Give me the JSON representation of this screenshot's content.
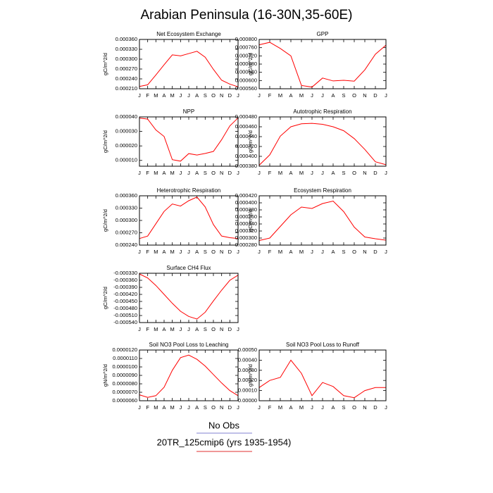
{
  "page": {
    "title": "Arabian Peninsula (16-30N,35-60E)",
    "legend": [
      {
        "name": "No Obs",
        "color": "#8080d0"
      },
      {
        "name": "20TR_125cmip6 (yrs 1935-1954)",
        "color": "#e03030"
      }
    ]
  },
  "chart_data": [
    {
      "type": "line",
      "title": "Net Ecosystem Exchange",
      "ylabel": "gC/m^2/d",
      "color": "#ff0000",
      "categories": [
        "J",
        "F",
        "M",
        "A",
        "M",
        "J",
        "J",
        "A",
        "S",
        "O",
        "N",
        "D",
        "J"
      ],
      "values": [
        0.000217,
        0.000222,
        0.000252,
        0.000283,
        0.000313,
        0.00031,
        0.000317,
        0.000324,
        0.000306,
        0.000269,
        0.000236,
        0.000224,
        0.000216
      ],
      "ylim": [
        0.00021,
        0.00036
      ],
      "yticks": [
        {
          "value": 0.00021,
          "label": "0.000210"
        },
        {
          "value": 0.00024,
          "label": "0.000240"
        },
        {
          "value": 0.00027,
          "label": "0.000270"
        },
        {
          "value": 0.0003,
          "label": "0.000300"
        },
        {
          "value": 0.00033,
          "label": "0.000330"
        },
        {
          "value": 0.00036,
          "label": "0.000360"
        }
      ]
    },
    {
      "type": "line",
      "title": "GPP",
      "ylabel": "gC/m^2/d",
      "color": "#ff0000",
      "categories": [
        "J",
        "F",
        "M",
        "A",
        "M",
        "J",
        "J",
        "A",
        "S",
        "O",
        "N",
        "D",
        "J"
      ],
      "values": [
        0.000774,
        0.000786,
        0.000756,
        0.00072,
        0.000576,
        0.000568,
        0.000612,
        0.000598,
        0.000601,
        0.000597,
        0.000652,
        0.000728,
        0.000772
      ],
      "ylim": [
        0.00056,
        0.0008
      ],
      "yticks": [
        {
          "value": 0.00056,
          "label": "0.000560"
        },
        {
          "value": 0.0006,
          "label": "0.000600"
        },
        {
          "value": 0.00064,
          "label": "0.000640"
        },
        {
          "value": 0.00068,
          "label": "0.000680"
        },
        {
          "value": 0.00072,
          "label": "0.000720"
        },
        {
          "value": 0.00076,
          "label": "0.000760"
        },
        {
          "value": 0.0008,
          "label": "0.000800"
        }
      ]
    },
    {
      "type": "line",
      "title": "NPP",
      "ylabel": "gC/m^2/d",
      "color": "#ff0000",
      "categories": [
        "J",
        "F",
        "M",
        "A",
        "M",
        "J",
        "J",
        "A",
        "S",
        "O",
        "N",
        "D",
        "J"
      ],
      "values": [
        3.92e-05,
        3.85e-05,
        3.1e-05,
        2.65e-05,
        1.05e-05,
        9.5e-06,
        1.47e-05,
        1.37e-05,
        1.48e-05,
        1.62e-05,
        2.43e-05,
        3.38e-05,
        3.93e-05
      ],
      "ylim": [
        6e-06,
        4e-05
      ],
      "yticks": [
        {
          "value": 1e-05,
          "label": "0.000010"
        },
        {
          "value": 2e-05,
          "label": "0.000020"
        },
        {
          "value": 3e-05,
          "label": "0.000030"
        },
        {
          "value": 4e-05,
          "label": "0.000040"
        }
      ]
    },
    {
      "type": "line",
      "title": "Autotrophic Respiration",
      "ylabel": "gC/m^2/d",
      "color": "#ff0000",
      "categories": [
        "J",
        "F",
        "M",
        "A",
        "M",
        "J",
        "J",
        "A",
        "S",
        "O",
        "N",
        "D",
        "J"
      ],
      "values": [
        0.000382,
        0.000403,
        0.000441,
        0.00046,
        0.000466,
        0.000467,
        0.000465,
        0.00046,
        0.000452,
        0.000436,
        0.000414,
        0.000389,
        0.000383
      ],
      "ylim": [
        0.00038,
        0.00048
      ],
      "yticks": [
        {
          "value": 0.00038,
          "label": "0.000380"
        },
        {
          "value": 0.0004,
          "label": "0.000400"
        },
        {
          "value": 0.00042,
          "label": "0.000420"
        },
        {
          "value": 0.00044,
          "label": "0.000440"
        },
        {
          "value": 0.00046,
          "label": "0.000460"
        },
        {
          "value": 0.00048,
          "label": "0.000480"
        }
      ]
    },
    {
      "type": "line",
      "title": "Heterotrophic Respiration",
      "ylabel": "gC/m^2/d",
      "color": "#ff0000",
      "categories": [
        "J",
        "F",
        "M",
        "A",
        "M",
        "J",
        "J",
        "A",
        "S",
        "O",
        "N",
        "D",
        "J"
      ],
      "values": [
        0.000256,
        0.000262,
        0.000292,
        0.000322,
        0.00034,
        0.000335,
        0.000348,
        0.000357,
        0.000333,
        0.00029,
        0.000262,
        0.000258,
        0.000256
      ],
      "ylim": [
        0.00024,
        0.00036
      ],
      "yticks": [
        {
          "value": 0.00024,
          "label": "0.000240"
        },
        {
          "value": 0.00027,
          "label": "0.000270"
        },
        {
          "value": 0.0003,
          "label": "0.000300"
        },
        {
          "value": 0.00033,
          "label": "0.000330"
        },
        {
          "value": 0.00036,
          "label": "0.000360"
        }
      ]
    },
    {
      "type": "line",
      "title": "Ecosystem Respiration",
      "ylabel": "gC/m^2/d",
      "color": "#ff0000",
      "categories": [
        "J",
        "F",
        "M",
        "A",
        "M",
        "J",
        "J",
        "A",
        "S",
        "O",
        "N",
        "D",
        "J"
      ],
      "values": [
        0.000293,
        0.0003,
        0.000333,
        0.000366,
        0.000388,
        0.000384,
        0.000398,
        0.000405,
        0.000375,
        0.000331,
        0.000303,
        0.000298,
        0.000294
      ],
      "ylim": [
        0.00028,
        0.00042
      ],
      "yticks": [
        {
          "value": 0.00028,
          "label": "0.000280"
        },
        {
          "value": 0.0003,
          "label": "0.000300"
        },
        {
          "value": 0.00032,
          "label": "0.000320"
        },
        {
          "value": 0.00034,
          "label": "0.000340"
        },
        {
          "value": 0.00036,
          "label": "0.000360"
        },
        {
          "value": 0.00038,
          "label": "0.000380"
        },
        {
          "value": 0.0004,
          "label": "0.000400"
        },
        {
          "value": 0.00042,
          "label": "0.000420"
        }
      ]
    },
    {
      "type": "line",
      "title": "Surface CH4 Flux",
      "ylabel": "gC/m^2/d",
      "color": "#ff0000",
      "categories": [
        "J",
        "F",
        "M",
        "A",
        "M",
        "J",
        "J",
        "A",
        "S",
        "O",
        "N",
        "D",
        "J"
      ],
      "values": [
        -0.000333,
        -0.00035,
        -0.000382,
        -0.00042,
        -0.000458,
        -0.000492,
        -0.000514,
        -0.000525,
        -0.000496,
        -0.000448,
        -0.000402,
        -0.00036,
        -0.000338
      ],
      "ylim": [
        -0.00054,
        -0.00033
      ],
      "yticks": [
        {
          "value": -0.00054,
          "label": "-0.000540"
        },
        {
          "value": -0.00051,
          "label": "-0.000510"
        },
        {
          "value": -0.00048,
          "label": "-0.000480"
        },
        {
          "value": -0.00045,
          "label": "-0.000450"
        },
        {
          "value": -0.00042,
          "label": "-0.000420"
        },
        {
          "value": -0.00039,
          "label": "-0.000390"
        },
        {
          "value": -0.00036,
          "label": "-0.000360"
        },
        {
          "value": -0.00033,
          "label": "-0.000330"
        }
      ]
    },
    {
      "type": "line",
      "title": "Soil NO3 Pool Loss to Leaching",
      "ylabel": "gN/m^2/d",
      "color": "#ff0000",
      "categories": [
        "J",
        "F",
        "M",
        "A",
        "M",
        "J",
        "J",
        "A",
        "S",
        "O",
        "N",
        "D",
        "J"
      ],
      "values": [
        6.7e-06,
        6.4e-06,
        6.6e-06,
        7.6e-06,
        9.6e-06,
        1.11e-05,
        1.14e-05,
        1.09e-05,
        1.01e-05,
        9.1e-06,
        8.1e-06,
        7.2e-06,
        6.6e-06
      ],
      "ylim": [
        6e-06,
        1.2e-05
      ],
      "yticks": [
        {
          "value": 6e-06,
          "label": "0.0000060"
        },
        {
          "value": 7e-06,
          "label": "0.0000070"
        },
        {
          "value": 8e-06,
          "label": "0.0000080"
        },
        {
          "value": 9e-06,
          "label": "0.0000090"
        },
        {
          "value": 1e-05,
          "label": "0.0000100"
        },
        {
          "value": 1.1e-05,
          "label": "0.0000110"
        },
        {
          "value": 1.2e-05,
          "label": "0.0000120"
        }
      ]
    },
    {
      "type": "line",
      "title": "Soil NO3 Pool Loss to Runoff",
      "ylabel": "gN/m^2/d",
      "color": "#ff0000",
      "categories": [
        "J",
        "F",
        "M",
        "A",
        "M",
        "J",
        "J",
        "A",
        "S",
        "O",
        "N",
        "D",
        "J"
      ],
      "values": [
        0.00013,
        0.0002,
        0.00023,
        0.0004,
        0.00027,
        5e-05,
        0.00018,
        0.00014,
        5e-05,
        3e-05,
        0.0001,
        0.00013,
        0.00013
      ],
      "ylim": [
        0,
        0.0005
      ],
      "yticks": [
        {
          "value": 0,
          "label": "0.00000"
        },
        {
          "value": 0.0001,
          "label": "0.00010"
        },
        {
          "value": 0.0002,
          "label": "0.00020"
        },
        {
          "value": 0.0003,
          "label": "0.00030"
        },
        {
          "value": 0.0004,
          "label": "0.00040"
        },
        {
          "value": 0.0005,
          "label": "0.00050"
        }
      ]
    }
  ]
}
